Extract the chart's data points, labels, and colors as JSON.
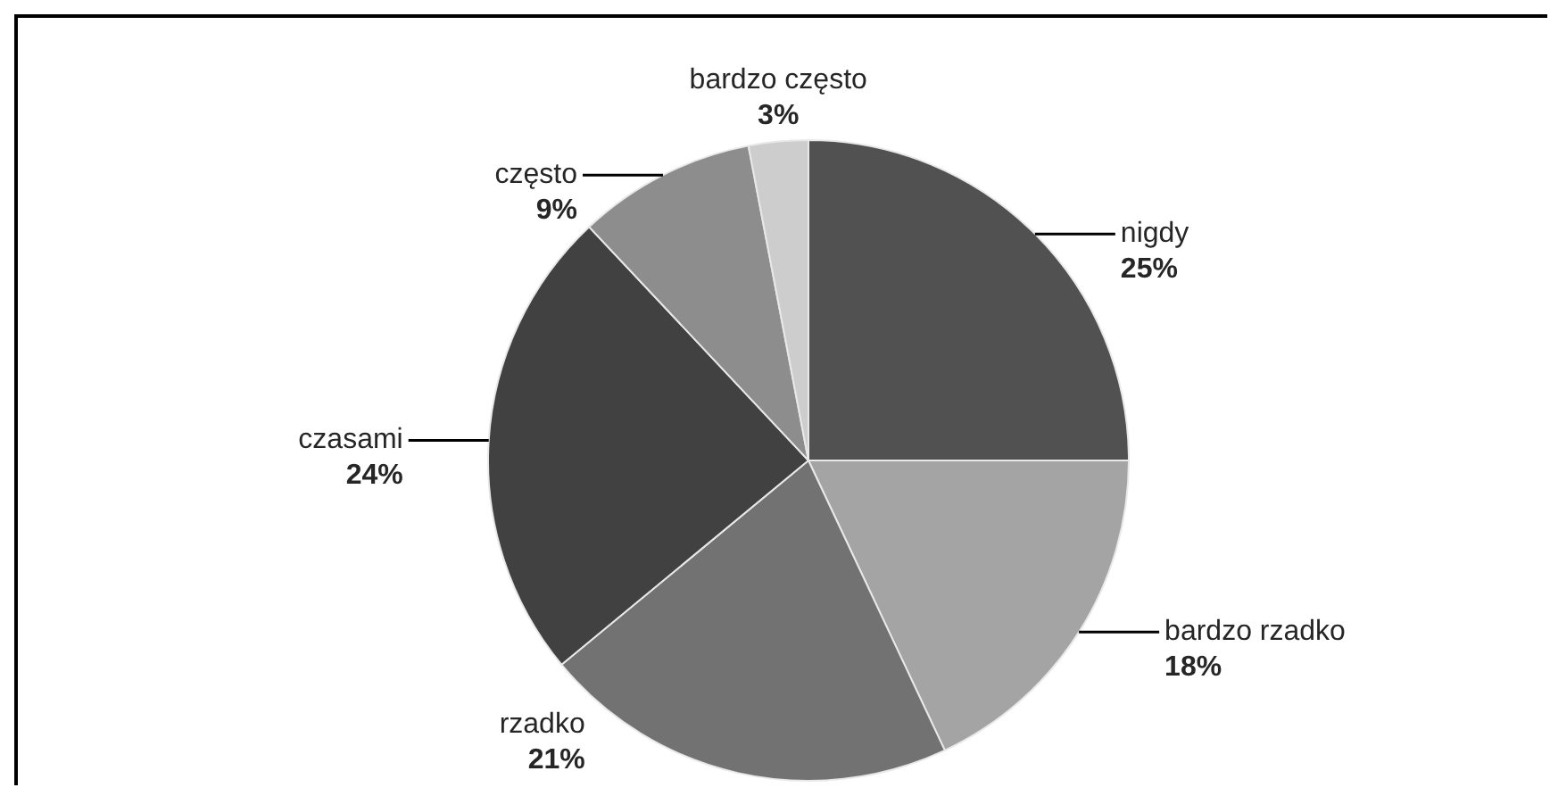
{
  "chart_data": {
    "type": "pie",
    "categories": [
      "nigdy",
      "bardzo rzadko",
      "rzadko",
      "czasami",
      "często",
      "bardzo często"
    ],
    "values": [
      25,
      18,
      21,
      24,
      9,
      3
    ],
    "value_labels": [
      "25%",
      "18%",
      "21%",
      "24%",
      "9%",
      "3%"
    ],
    "colors": [
      "#515151",
      "#a4a4a4",
      "#727272",
      "#414141",
      "#8d8d8d",
      "#cdcdcd"
    ]
  }
}
